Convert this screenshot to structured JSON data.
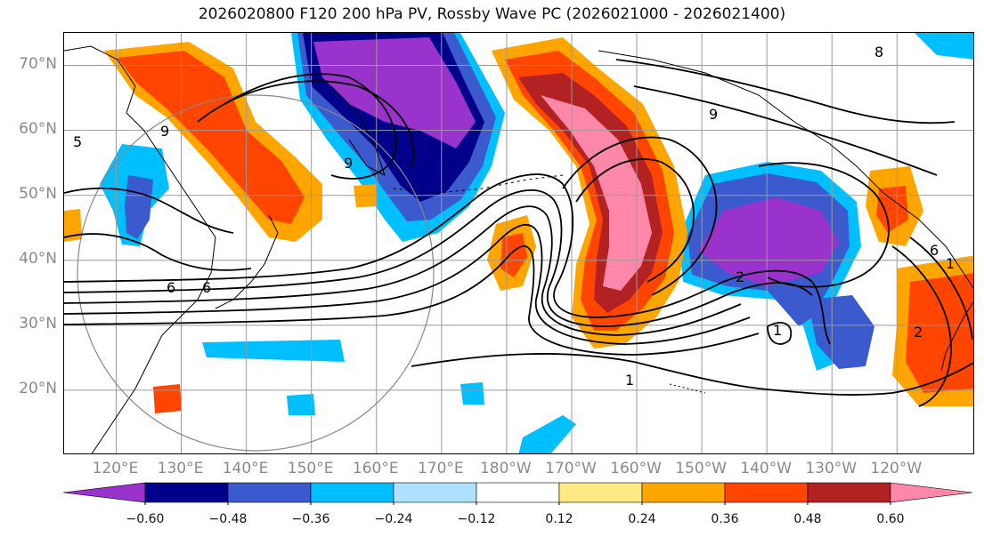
{
  "title": "2026020800 F120 200 hPa PV, Rossby Wave PC (2026021000 - 2026021400)",
  "map": {
    "lat_labels": [
      "70°N",
      "60°N",
      "50°N",
      "40°N",
      "30°N",
      "20°N"
    ],
    "lat_values": [
      70,
      60,
      50,
      40,
      30,
      20
    ],
    "lon_labels": [
      "120°E",
      "130°E",
      "140°E",
      "150°E",
      "160°E",
      "170°E",
      "180°W",
      "170°W",
      "160°W",
      "150°W",
      "140°W",
      "130°W",
      "120°W"
    ],
    "lon_values": [
      120,
      130,
      140,
      150,
      160,
      170,
      180,
      190,
      200,
      210,
      220,
      230,
      240
    ],
    "lon_range": [
      112,
      252
    ],
    "lat_range": [
      10,
      75
    ],
    "contour_labels": [
      "9",
      "9",
      "9",
      "6",
      "8",
      "1",
      "2",
      "1",
      "6",
      "2",
      "1",
      "5",
      "6"
    ]
  },
  "colorbar": {
    "tick_labels": [
      "−0.60",
      "−0.48",
      "−0.36",
      "−0.24",
      "−0.12",
      "0.12",
      "0.24",
      "0.36",
      "0.48",
      "0.60"
    ],
    "colors": [
      "#9933cc",
      "#00008b",
      "#3a5acd",
      "#00bfff",
      "#b0e0ff",
      "#ffffff",
      "#ffe985",
      "#ffa500",
      "#ff4500",
      "#b22222",
      "#ff88aa"
    ],
    "extend": "both"
  }
}
